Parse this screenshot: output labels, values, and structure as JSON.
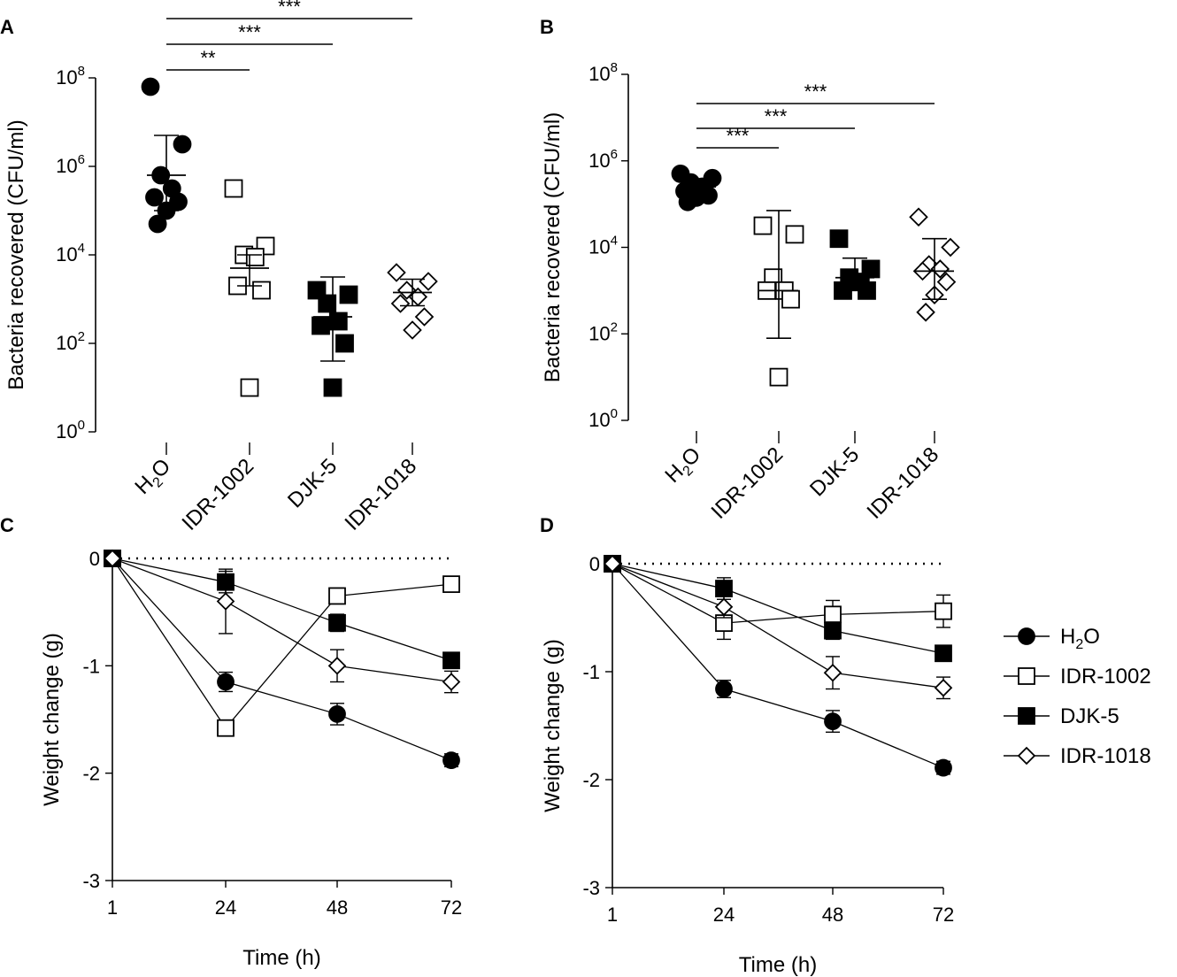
{
  "chart_data": [
    {
      "panel": "A",
      "type": "scatter",
      "scale": "log10",
      "ylabel": "Bacteria recovered (CFU/ml)",
      "ytick_exponents": [
        0,
        2,
        4,
        6,
        8
      ],
      "ylim_log10": [
        0,
        8
      ],
      "categories": [
        {
          "label": "H",
          "sub": "2",
          "rest": "O"
        },
        {
          "label": "IDR-1002"
        },
        {
          "label": "DJK-5"
        },
        {
          "label": "IDR-1018"
        }
      ],
      "groups": [
        {
          "name": "H2O",
          "marker": "circle-filled",
          "points_log10": [
            7.8,
            6.5,
            5.8,
            5.5,
            5.3,
            5.2,
            5.0,
            4.7
          ],
          "mean_log10": 5.8,
          "err_log10": [
            5.0,
            6.7
          ]
        },
        {
          "name": "IDR-1002",
          "marker": "square-open",
          "points_log10": [
            5.5,
            4.2,
            4.0,
            3.95,
            3.3,
            3.2,
            1.0
          ],
          "mean_log10": 3.7,
          "err_log10": [
            3.3,
            4.0
          ]
        },
        {
          "name": "DJK-5",
          "marker": "square-filled",
          "points_log10": [
            3.2,
            3.1,
            2.9,
            2.5,
            2.4,
            2.0,
            1.0
          ],
          "mean_log10": 2.6,
          "err_log10": [
            1.6,
            3.5
          ]
        },
        {
          "name": "IDR-1018",
          "marker": "diamond-open",
          "points_log10": [
            3.6,
            3.4,
            3.2,
            3.05,
            2.9,
            2.6,
            2.3
          ],
          "mean_log10": 3.15,
          "err_log10": [
            2.85,
            3.45
          ]
        }
      ],
      "significance": [
        {
          "from": 0,
          "to": 1,
          "label": "**"
        },
        {
          "from": 0,
          "to": 2,
          "label": "***"
        },
        {
          "from": 0,
          "to": 3,
          "label": "***"
        }
      ]
    },
    {
      "panel": "B",
      "type": "scatter",
      "scale": "log10",
      "ylabel": "Bacteria recovered (CFU/ml)",
      "ytick_exponents": [
        0,
        2,
        4,
        6,
        8
      ],
      "ylim_log10": [
        0,
        8
      ],
      "categories": [
        {
          "label": "H",
          "sub": "2",
          "rest": "O"
        },
        {
          "label": "IDR-1002"
        },
        {
          "label": "DJK-5"
        },
        {
          "label": "IDR-1018"
        }
      ],
      "groups": [
        {
          "name": "H2O",
          "marker": "circle-filled",
          "points_log10": [
            5.7,
            5.6,
            5.5,
            5.4,
            5.3,
            5.2,
            5.15,
            5.05
          ],
          "mean_log10": 5.4,
          "err_log10": [
            5.3,
            5.5
          ]
        },
        {
          "name": "IDR-1002",
          "marker": "square-open",
          "points_log10": [
            4.5,
            4.3,
            3.3,
            3.0,
            3.0,
            2.8,
            1.0
          ],
          "mean_log10": 3.0,
          "err_log10": [
            1.9,
            4.85
          ]
        },
        {
          "name": "DJK-5",
          "marker": "square-filled",
          "points_log10": [
            4.2,
            3.5,
            3.3,
            3.2,
            3.0,
            3.0
          ],
          "mean_log10": 3.3,
          "err_log10": [
            3.0,
            3.75
          ]
        },
        {
          "name": "IDR-1018",
          "marker": "diamond-open",
          "points_log10": [
            4.7,
            4.0,
            3.6,
            3.5,
            3.45,
            3.2,
            2.9,
            2.5
          ],
          "mean_log10": 3.45,
          "err_log10": [
            2.8,
            4.2
          ]
        }
      ],
      "significance": [
        {
          "from": 0,
          "to": 1,
          "label": "***"
        },
        {
          "from": 0,
          "to": 2,
          "label": "***"
        },
        {
          "from": 0,
          "to": 3,
          "label": "***"
        }
      ]
    },
    {
      "panel": "C",
      "type": "line",
      "xlabel": "Time (h)",
      "ylabel": "Weight change (g)",
      "x_ticks": [
        "1",
        "24",
        "48",
        "72"
      ],
      "y_ticks": [
        "0",
        "-1",
        "-2",
        "-3"
      ],
      "ylim": [
        -3,
        0
      ],
      "series": [
        {
          "name": "H2O",
          "marker": "circle-filled",
          "values": [
            0,
            -1.15,
            -1.45,
            -1.88
          ],
          "err": [
            0,
            0.09,
            0.1,
            0.06
          ]
        },
        {
          "name": "IDR-1002",
          "marker": "square-open",
          "values": [
            0,
            -1.58,
            -0.35,
            -0.24
          ],
          "err": [
            0,
            0.03,
            0.03,
            0.04
          ]
        },
        {
          "name": "DJK-5",
          "marker": "square-filled",
          "values": [
            0,
            -0.22,
            -0.6,
            -0.95
          ],
          "err": [
            0,
            0.1,
            0.08,
            0.07
          ]
        },
        {
          "name": "IDR-1018",
          "marker": "diamond-open",
          "values": [
            0,
            -0.4,
            -1.0,
            -1.15
          ],
          "err": [
            0,
            0.3,
            0.15,
            0.1
          ]
        }
      ]
    },
    {
      "panel": "D",
      "type": "line",
      "xlabel": "Time (h)",
      "ylabel": "Weight change (g)",
      "x_ticks": [
        "1",
        "24",
        "48",
        "72"
      ],
      "y_ticks": [
        "0",
        "-1",
        "-2",
        "-3"
      ],
      "ylim": [
        -3,
        0
      ],
      "series": [
        {
          "name": "H2O",
          "marker": "circle-filled",
          "values": [
            0,
            -1.16,
            -1.46,
            -1.89
          ],
          "err": [
            0,
            0.08,
            0.1,
            0.06
          ]
        },
        {
          "name": "IDR-1002",
          "marker": "square-open",
          "values": [
            0,
            -0.55,
            -0.47,
            -0.44
          ],
          "err": [
            0,
            0.15,
            0.13,
            0.15
          ]
        },
        {
          "name": "DJK-5",
          "marker": "square-filled",
          "values": [
            0,
            -0.23,
            -0.62,
            -0.83
          ],
          "err": [
            0,
            0.1,
            0.08,
            0.04
          ]
        },
        {
          "name": "IDR-1018",
          "marker": "diamond-open",
          "values": [
            0,
            -0.4,
            -1.01,
            -1.15
          ],
          "err": [
            0,
            0.1,
            0.15,
            0.1
          ]
        }
      ]
    }
  ],
  "legend": [
    {
      "main": "H",
      "sub": "2",
      "rest": "O",
      "marker": "circle-filled"
    },
    {
      "main": "IDR-1002",
      "marker": "square-open"
    },
    {
      "main": "DJK-5",
      "marker": "square-filled"
    },
    {
      "main": "IDR-1018",
      "marker": "diamond-open"
    }
  ],
  "panel_labels": [
    "A",
    "B",
    "C",
    "D"
  ],
  "colors": {
    "ink": "#000000",
    "background": "#ffffff"
  }
}
